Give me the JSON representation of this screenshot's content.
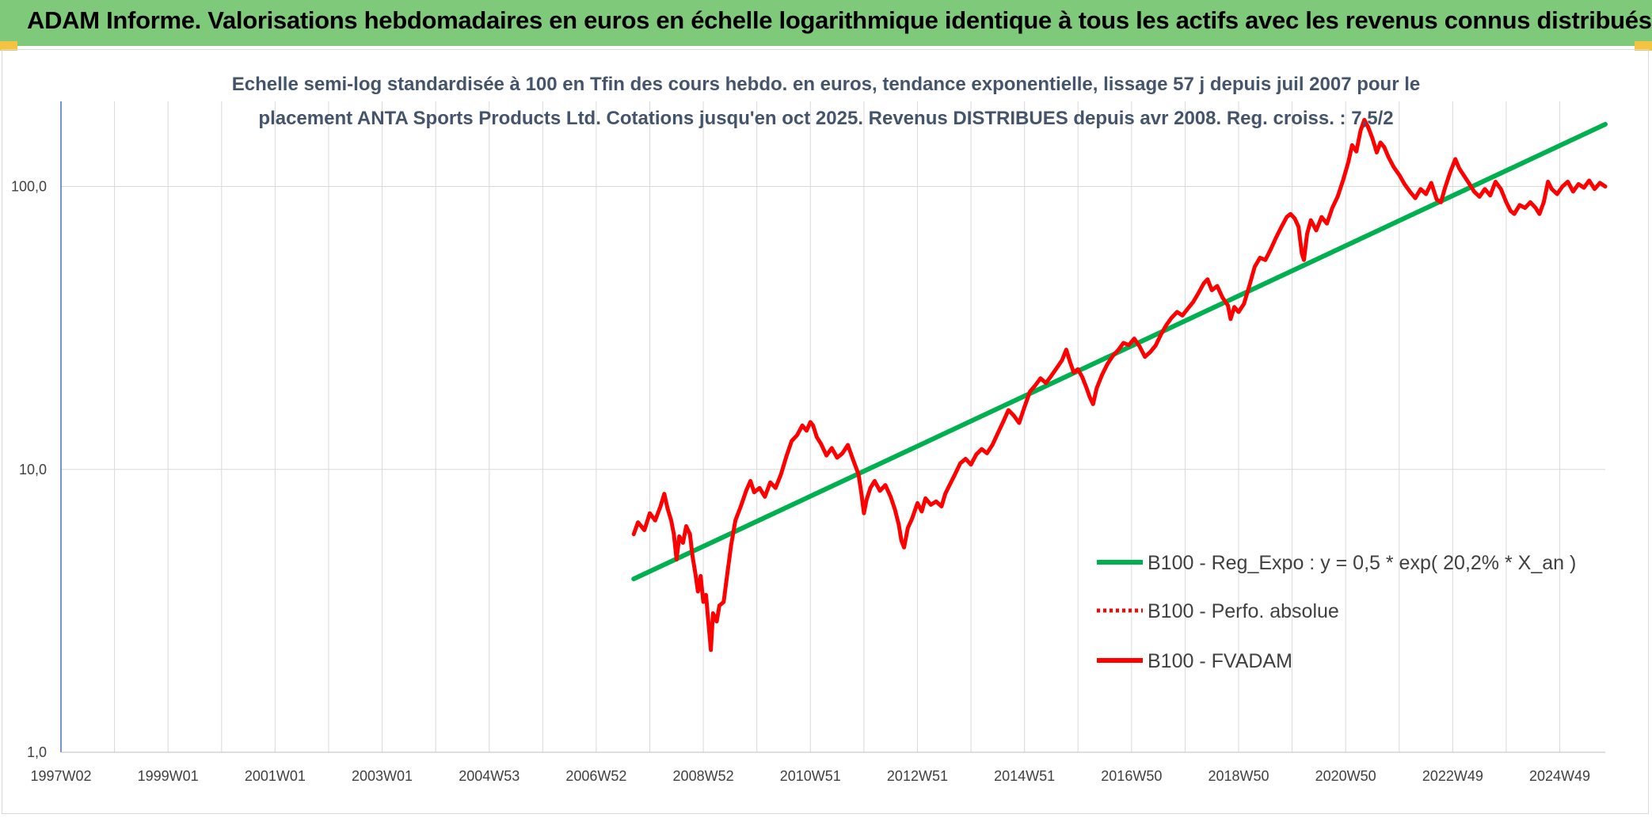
{
  "banner": {
    "title": "ADAM Informe. Valorisations hebdomadaires en euros en échelle logarithmique identique à tous les actifs avec les revenus connus distribués"
  },
  "colors": {
    "banner_bg": "#7fc97a",
    "corner_accent": "#f5c342",
    "trend": "#00b050",
    "fvadam": "#ff0000",
    "perfo": "#ff0000",
    "gridline": "#d9d9d9",
    "axis": "#4472c4"
  },
  "chart_data": {
    "type": "line",
    "title_lines": [
      "Echelle semi-log standardisée à 100 en Tfin des cours hebdo. en euros, tendance exponentielle, lissage 57 j depuis juil 2007 pour le",
      "placement ANTA Sports Products Ltd. Cotations jusqu'en oct 2025. Revenus DISTRIBUES depuis avr 2008. Reg. croiss. : 7,5/2"
    ],
    "y_scale": "log",
    "ylim": [
      1,
      200
    ],
    "y_ticks": [
      {
        "value": 1,
        "label": "1,0"
      },
      {
        "value": 10,
        "label": "10,0"
      },
      {
        "value": 100,
        "label": "100,0"
      }
    ],
    "xlim": [
      1997.0,
      2025.85
    ],
    "x_ticks": [
      {
        "value": 1997.0,
        "label": "1997W02"
      },
      {
        "value": 1999.0,
        "label": "1999W01"
      },
      {
        "value": 2001.0,
        "label": "2001W01"
      },
      {
        "value": 2003.0,
        "label": "2003W01"
      },
      {
        "value": 2005.0,
        "label": "2004W53"
      },
      {
        "value": 2007.0,
        "label": "2006W52"
      },
      {
        "value": 2009.0,
        "label": "2008W52"
      },
      {
        "value": 2011.0,
        "label": "2010W51"
      },
      {
        "value": 2013.0,
        "label": "2012W51"
      },
      {
        "value": 2015.0,
        "label": "2014W51"
      },
      {
        "value": 2017.0,
        "label": "2016W50"
      },
      {
        "value": 2019.0,
        "label": "2018W50"
      },
      {
        "value": 2021.0,
        "label": "2020W50"
      },
      {
        "value": 2023.0,
        "label": "2022W49"
      },
      {
        "value": 2025.0,
        "label": "2024W49"
      }
    ],
    "grid": true,
    "legend_position": "right",
    "series": [
      {
        "name": "B100 - Reg_Expo : y = 0,5 * exp( 20,2% *  X_an )",
        "style": "solid",
        "color": "#00b050",
        "points": [
          [
            2007.7,
            4.1
          ],
          [
            2025.85,
            166
          ]
        ]
      },
      {
        "name": "B100 - Perfo. absolue",
        "style": "dotted",
        "color": "#ff0000",
        "points": []
      },
      {
        "name": "B100 - FVADAM",
        "style": "solid",
        "color": "#ff0000",
        "points": [
          [
            2007.7,
            5.9
          ],
          [
            2007.78,
            6.5
          ],
          [
            2007.9,
            6.1
          ],
          [
            2008.0,
            7.0
          ],
          [
            2008.1,
            6.6
          ],
          [
            2008.2,
            7.4
          ],
          [
            2008.27,
            8.2
          ],
          [
            2008.33,
            7.3
          ],
          [
            2008.4,
            6.6
          ],
          [
            2008.45,
            5.9
          ],
          [
            2008.5,
            4.8
          ],
          [
            2008.55,
            5.8
          ],
          [
            2008.62,
            5.5
          ],
          [
            2008.68,
            6.3
          ],
          [
            2008.75,
            5.9
          ],
          [
            2008.8,
            4.9
          ],
          [
            2008.85,
            4.3
          ],
          [
            2008.9,
            3.7
          ],
          [
            2008.95,
            4.2
          ],
          [
            2009.0,
            3.4
          ],
          [
            2009.05,
            3.6
          ],
          [
            2009.1,
            2.8
          ],
          [
            2009.14,
            2.3
          ],
          [
            2009.18,
            3.1
          ],
          [
            2009.25,
            2.9
          ],
          [
            2009.3,
            3.3
          ],
          [
            2009.38,
            3.4
          ],
          [
            2009.45,
            4.3
          ],
          [
            2009.52,
            5.4
          ],
          [
            2009.6,
            6.6
          ],
          [
            2009.7,
            7.4
          ],
          [
            2009.8,
            8.4
          ],
          [
            2009.88,
            9.1
          ],
          [
            2009.95,
            8.3
          ],
          [
            2010.05,
            8.6
          ],
          [
            2010.15,
            8.0
          ],
          [
            2010.25,
            9.0
          ],
          [
            2010.35,
            8.6
          ],
          [
            2010.45,
            9.6
          ],
          [
            2010.55,
            11.1
          ],
          [
            2010.65,
            12.6
          ],
          [
            2010.75,
            13.2
          ],
          [
            2010.85,
            14.3
          ],
          [
            2010.93,
            13.7
          ],
          [
            2011.0,
            14.7
          ],
          [
            2011.05,
            14.3
          ],
          [
            2011.12,
            13.0
          ],
          [
            2011.2,
            12.3
          ],
          [
            2011.3,
            11.2
          ],
          [
            2011.4,
            11.9
          ],
          [
            2011.5,
            11.0
          ],
          [
            2011.6,
            11.4
          ],
          [
            2011.7,
            12.2
          ],
          [
            2011.8,
            10.8
          ],
          [
            2011.9,
            9.6
          ],
          [
            2011.95,
            8.3
          ],
          [
            2012.0,
            7.0
          ],
          [
            2012.05,
            7.8
          ],
          [
            2012.12,
            8.6
          ],
          [
            2012.2,
            9.1
          ],
          [
            2012.3,
            8.4
          ],
          [
            2012.4,
            8.8
          ],
          [
            2012.5,
            8.0
          ],
          [
            2012.58,
            7.2
          ],
          [
            2012.65,
            6.4
          ],
          [
            2012.7,
            5.6
          ],
          [
            2012.75,
            5.3
          ],
          [
            2012.82,
            6.2
          ],
          [
            2012.9,
            6.7
          ],
          [
            2013.0,
            7.6
          ],
          [
            2013.08,
            7.1
          ],
          [
            2013.15,
            7.9
          ],
          [
            2013.25,
            7.5
          ],
          [
            2013.35,
            7.7
          ],
          [
            2013.45,
            7.4
          ],
          [
            2013.52,
            8.2
          ],
          [
            2013.6,
            8.8
          ],
          [
            2013.7,
            9.6
          ],
          [
            2013.8,
            10.5
          ],
          [
            2013.9,
            10.9
          ],
          [
            2014.0,
            10.4
          ],
          [
            2014.1,
            11.3
          ],
          [
            2014.2,
            11.8
          ],
          [
            2014.3,
            11.4
          ],
          [
            2014.4,
            12.2
          ],
          [
            2014.5,
            13.4
          ],
          [
            2014.6,
            14.7
          ],
          [
            2014.7,
            16.2
          ],
          [
            2014.8,
            15.5
          ],
          [
            2014.9,
            14.6
          ],
          [
            2015.0,
            16.6
          ],
          [
            2015.1,
            18.8
          ],
          [
            2015.2,
            19.8
          ],
          [
            2015.3,
            21.0
          ],
          [
            2015.4,
            20.2
          ],
          [
            2015.5,
            21.4
          ],
          [
            2015.6,
            22.8
          ],
          [
            2015.7,
            24.3
          ],
          [
            2015.78,
            26.5
          ],
          [
            2015.85,
            24.0
          ],
          [
            2015.92,
            22.0
          ],
          [
            2016.0,
            22.6
          ],
          [
            2016.08,
            21.2
          ],
          [
            2016.15,
            19.6
          ],
          [
            2016.22,
            18.0
          ],
          [
            2016.28,
            17.0
          ],
          [
            2016.35,
            19.4
          ],
          [
            2016.45,
            21.6
          ],
          [
            2016.55,
            23.6
          ],
          [
            2016.65,
            25.2
          ],
          [
            2016.75,
            26.4
          ],
          [
            2016.85,
            28.0
          ],
          [
            2016.95,
            27.5
          ],
          [
            2017.05,
            29.0
          ],
          [
            2017.15,
            27.2
          ],
          [
            2017.25,
            25.0
          ],
          [
            2017.35,
            26.0
          ],
          [
            2017.45,
            27.4
          ],
          [
            2017.55,
            30.0
          ],
          [
            2017.65,
            32.4
          ],
          [
            2017.75,
            34.4
          ],
          [
            2017.85,
            36.0
          ],
          [
            2017.95,
            35.0
          ],
          [
            2018.05,
            37.0
          ],
          [
            2018.15,
            39.0
          ],
          [
            2018.25,
            42.0
          ],
          [
            2018.35,
            45.5
          ],
          [
            2018.42,
            47.0
          ],
          [
            2018.5,
            43.0
          ],
          [
            2018.6,
            44.5
          ],
          [
            2018.7,
            40.5
          ],
          [
            2018.8,
            38.0
          ],
          [
            2018.85,
            34.0
          ],
          [
            2018.92,
            37.5
          ],
          [
            2019.0,
            36.0
          ],
          [
            2019.1,
            38.5
          ],
          [
            2019.2,
            44.5
          ],
          [
            2019.3,
            52.0
          ],
          [
            2019.4,
            56.0
          ],
          [
            2019.5,
            55.0
          ],
          [
            2019.6,
            60.0
          ],
          [
            2019.7,
            66.0
          ],
          [
            2019.8,
            72.0
          ],
          [
            2019.9,
            78.0
          ],
          [
            2019.97,
            80.0
          ],
          [
            2020.05,
            77.0
          ],
          [
            2020.12,
            72.0
          ],
          [
            2020.18,
            58.0
          ],
          [
            2020.22,
            55.0
          ],
          [
            2020.28,
            68.0
          ],
          [
            2020.35,
            76.0
          ],
          [
            2020.45,
            70.0
          ],
          [
            2020.55,
            78.0
          ],
          [
            2020.65,
            74.0
          ],
          [
            2020.75,
            84.0
          ],
          [
            2020.85,
            92.0
          ],
          [
            2020.95,
            105.0
          ],
          [
            2021.05,
            122.0
          ],
          [
            2021.12,
            140.0
          ],
          [
            2021.2,
            133.0
          ],
          [
            2021.28,
            158.0
          ],
          [
            2021.35,
            172.0
          ],
          [
            2021.42,
            162.0
          ],
          [
            2021.5,
            148.0
          ],
          [
            2021.58,
            132.0
          ],
          [
            2021.65,
            143.0
          ],
          [
            2021.72,
            138.0
          ],
          [
            2021.8,
            127.0
          ],
          [
            2021.9,
            117.0
          ],
          [
            2022.0,
            110.0
          ],
          [
            2022.1,
            102.0
          ],
          [
            2022.2,
            96.0
          ],
          [
            2022.3,
            91.0
          ],
          [
            2022.4,
            98.0
          ],
          [
            2022.5,
            94.0
          ],
          [
            2022.6,
            103.0
          ],
          [
            2022.7,
            90.0
          ],
          [
            2022.78,
            88.0
          ],
          [
            2022.85,
            98.0
          ],
          [
            2022.95,
            112.0
          ],
          [
            2023.05,
            125.0
          ],
          [
            2023.12,
            116.0
          ],
          [
            2023.2,
            110.0
          ],
          [
            2023.3,
            103.0
          ],
          [
            2023.4,
            96.0
          ],
          [
            2023.5,
            92.0
          ],
          [
            2023.6,
            98.0
          ],
          [
            2023.7,
            93.0
          ],
          [
            2023.8,
            104.0
          ],
          [
            2023.9,
            98.0
          ],
          [
            2024.0,
            88.0
          ],
          [
            2024.08,
            82.0
          ],
          [
            2024.15,
            80.0
          ],
          [
            2024.25,
            86.0
          ],
          [
            2024.35,
            84.0
          ],
          [
            2024.45,
            88.0
          ],
          [
            2024.55,
            84.0
          ],
          [
            2024.62,
            80.0
          ],
          [
            2024.7,
            88.0
          ],
          [
            2024.78,
            104.0
          ],
          [
            2024.85,
            98.0
          ],
          [
            2024.95,
            94.0
          ],
          [
            2025.05,
            100.0
          ],
          [
            2025.15,
            104.0
          ],
          [
            2025.25,
            96.0
          ],
          [
            2025.35,
            102.0
          ],
          [
            2025.45,
            99.0
          ],
          [
            2025.55,
            105.0
          ],
          [
            2025.65,
            98.0
          ],
          [
            2025.75,
            103.0
          ],
          [
            2025.85,
            100.0
          ]
        ]
      }
    ]
  }
}
